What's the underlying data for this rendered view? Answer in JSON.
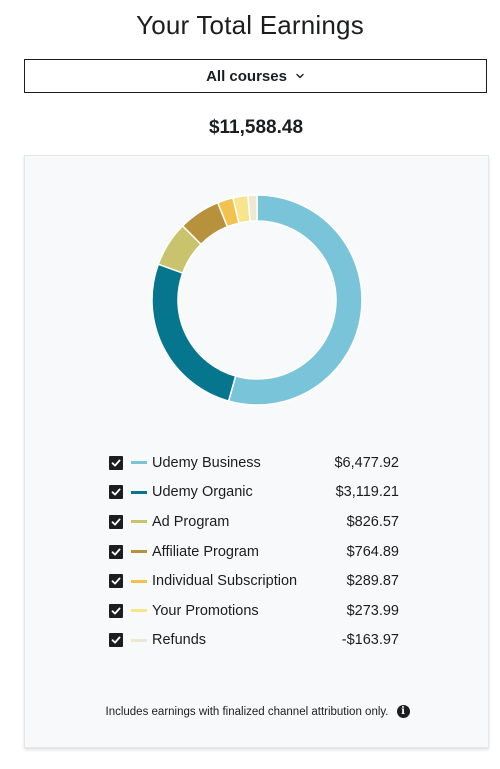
{
  "header": {
    "title": "Your Total Earnings"
  },
  "course_filter": {
    "selected": "All courses",
    "icon": "chevron-down-icon"
  },
  "total": "$11,588.48",
  "chart_data": {
    "type": "pie",
    "donut": true,
    "categories": [
      "Udemy Business",
      "Udemy Organic",
      "Ad Program",
      "Affiliate Program",
      "Individual Subscription",
      "Your Promotions",
      "Refunds"
    ],
    "values": [
      6477.92,
      3119.21,
      826.57,
      764.89,
      289.87,
      273.99,
      -163.97
    ]
  },
  "legend": [
    {
      "label": "Udemy Business",
      "value": "$6,477.92",
      "color": "#7ac4d9",
      "checked": true
    },
    {
      "label": "Udemy Organic",
      "value": "$3,119.21",
      "color": "#06768f",
      "checked": true
    },
    {
      "label": "Ad Program",
      "value": "$826.57",
      "color": "#c8c36c",
      "checked": true
    },
    {
      "label": "Affiliate Program",
      "value": "$764.89",
      "color": "#b8913d",
      "checked": true
    },
    {
      "label": "Individual Subscription",
      "value": "$289.87",
      "color": "#f2c14f",
      "checked": true
    },
    {
      "label": "Your Promotions",
      "value": "$273.99",
      "color": "#f8e48c",
      "checked": true
    },
    {
      "label": "Refunds",
      "value": "-$163.97",
      "color": "#ede8cf",
      "checked": true
    }
  ],
  "footnote": "Includes earnings with finalized channel attribution only.",
  "info_icon": "info-icon"
}
